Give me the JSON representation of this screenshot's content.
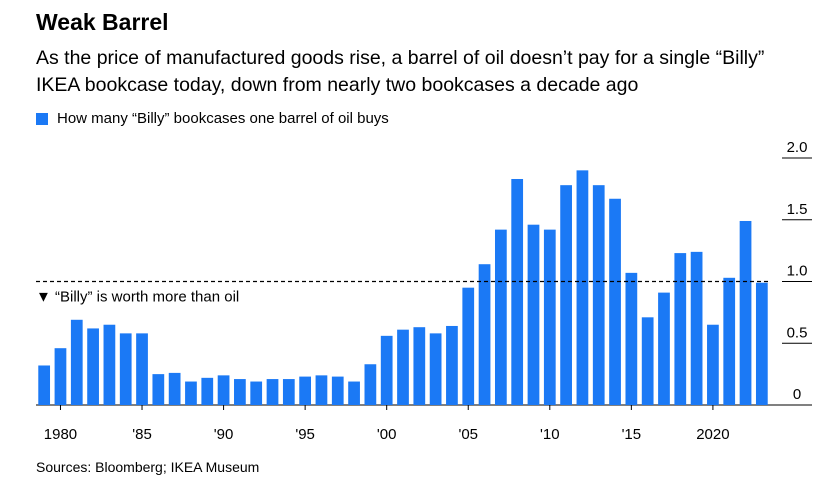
{
  "chart_data": {
    "type": "bar",
    "title": "Weak Barrel",
    "subtitle": "As the price of manufactured goods rise, a barrel of oil doesn’t pay for a single “Billy” IKEA bookcase today, down from nearly two bookcases a decade ago",
    "legend": [
      "How many “Billy” bookcases one barrel of oil buys"
    ],
    "legend_position": "top-left",
    "x": [
      1979,
      1980,
      1981,
      1982,
      1983,
      1984,
      1985,
      1986,
      1987,
      1988,
      1989,
      1990,
      1991,
      1992,
      1993,
      1994,
      1995,
      1996,
      1997,
      1998,
      1999,
      2000,
      2001,
      2002,
      2003,
      2004,
      2005,
      2006,
      2007,
      2008,
      2009,
      2010,
      2011,
      2012,
      2013,
      2014,
      2015,
      2016,
      2017,
      2018,
      2019,
      2020,
      2021,
      2022,
      2023
    ],
    "series": [
      {
        "name": "How many “Billy” bookcases one barrel of oil buys",
        "color": "#1b79f5",
        "values": [
          0.32,
          0.46,
          0.69,
          0.62,
          0.65,
          0.58,
          0.58,
          0.25,
          0.26,
          0.19,
          0.22,
          0.24,
          0.21,
          0.19,
          0.21,
          0.21,
          0.23,
          0.24,
          0.23,
          0.19,
          0.33,
          0.56,
          0.61,
          0.63,
          0.58,
          0.64,
          0.95,
          1.14,
          1.42,
          1.83,
          1.46,
          1.42,
          1.78,
          1.9,
          1.78,
          1.67,
          1.07,
          0.71,
          0.91,
          1.23,
          1.24,
          0.65,
          1.03,
          1.49,
          0.99
        ]
      }
    ],
    "x_tick_labels": [
      {
        "x": 1980,
        "label": "1980"
      },
      {
        "x": 1985,
        "label": "'85"
      },
      {
        "x": 1990,
        "label": "'90"
      },
      {
        "x": 1995,
        "label": "'95"
      },
      {
        "x": 2000,
        "label": "'00"
      },
      {
        "x": 2005,
        "label": "'05"
      },
      {
        "x": 2010,
        "label": "'10"
      },
      {
        "x": 2015,
        "label": "'15"
      },
      {
        "x": 2020,
        "label": "2020"
      }
    ],
    "y_ticks": [
      {
        "value": 0,
        "label": "0"
      },
      {
        "value": 0.5,
        "label": "0.5"
      },
      {
        "value": 1.0,
        "label": "1.0"
      },
      {
        "value": 1.5,
        "label": "1.5"
      },
      {
        "value": 2.0,
        "label": "2.0"
      }
    ],
    "ylim": [
      0,
      2.0
    ],
    "reference_line": {
      "value": 1.0,
      "style": "dashed",
      "label": "▼ “Billy” is worth more than oil"
    },
    "source": "Sources: Bloomberg; IKEA Museum"
  }
}
